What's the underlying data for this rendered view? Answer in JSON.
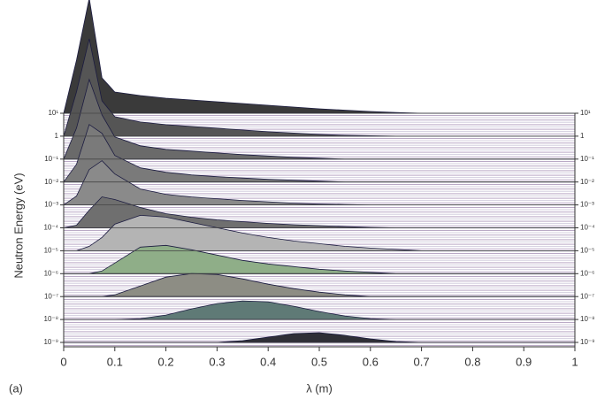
{
  "chart_data": {
    "type": "ridgeline",
    "xlabel": "λ (m)",
    "ylabel": "Neutron Energy (eV)",
    "panel_label": "(a)",
    "x": [
      0,
      0.025,
      0.05,
      0.075,
      0.1,
      0.15,
      0.2,
      0.25,
      0.3,
      0.35,
      0.4,
      0.45,
      0.5,
      0.55,
      0.6,
      0.65,
      0.7,
      0.75,
      0.8,
      0.85,
      0.9,
      0.95,
      1
    ],
    "xlim": [
      0,
      1
    ],
    "xticks": [
      0,
      0.1,
      0.2,
      0.3,
      0.4,
      0.5,
      0.6,
      0.7,
      0.8,
      0.9,
      1
    ],
    "ylog": true,
    "ylim": [
      1e-09,
      10
    ],
    "yticks": [
      {
        "value": 10,
        "label": "10¹"
      },
      1,
      {
        "value": 0.1,
        "label": "10⁻¹"
      },
      {
        "value": 0.01,
        "label": "10⁻²"
      },
      {
        "value": 0.001,
        "label": "10⁻³"
      },
      {
        "value": 0.0001,
        "label": "10⁻⁴"
      },
      {
        "value": 1e-05,
        "label": "10⁻⁵"
      },
      {
        "value": 1e-06,
        "label": "10⁻⁶"
      },
      {
        "value": 1e-07,
        "label": "10⁻⁷"
      },
      {
        "value": 1e-08,
        "label": "10⁻⁸"
      },
      {
        "value": 1e-09,
        "label": "10⁻⁹"
      }
    ],
    "grid": true,
    "series": [
      {
        "energy": 10,
        "color": "#3a3a3a",
        "values": [
          0,
          6,
          13,
          4,
          2.4,
          2,
          1.7,
          1.5,
          1.3,
          1.1,
          0.9,
          0.7,
          0.5,
          0.35,
          0.2,
          0.08,
          0,
          0,
          0,
          0,
          0,
          0,
          0
        ]
      },
      {
        "energy": 1,
        "color": "#555555",
        "values": [
          0,
          5,
          11,
          4,
          2.2,
          1.6,
          1.3,
          1.1,
          0.9,
          0.7,
          0.5,
          0.35,
          0.2,
          0.1,
          0.05,
          0,
          0,
          0,
          0,
          0,
          0,
          0,
          0
        ]
      },
      {
        "energy": 0.1,
        "color": "#6a6a6a",
        "values": [
          0,
          3.5,
          9,
          5,
          2.5,
          1.5,
          1.1,
          0.9,
          0.7,
          0.5,
          0.35,
          0.2,
          0.1,
          0,
          0,
          0,
          0,
          0,
          0,
          0,
          0,
          0,
          0
        ]
      },
      {
        "energy": 0.01,
        "color": "#7a7a7a",
        "values": [
          0,
          2,
          6.5,
          5.5,
          3,
          1.6,
          1.1,
          0.8,
          0.6,
          0.45,
          0.3,
          0.2,
          0.1,
          0,
          0,
          0,
          0,
          0,
          0,
          0,
          0,
          0,
          0
        ]
      },
      {
        "energy": 0.001,
        "color": "#8a8a8a",
        "values": [
          0,
          1,
          4,
          5,
          3.5,
          1.8,
          1.2,
          0.9,
          0.7,
          0.5,
          0.35,
          0.2,
          0.1,
          0.05,
          0,
          0,
          0,
          0,
          0,
          0,
          0,
          0,
          0
        ]
      },
      {
        "energy": 0.0001,
        "color": "#6f6f6f",
        "values": [
          0,
          0.3,
          2,
          3.5,
          3.2,
          2.3,
          1.6,
          1.2,
          0.9,
          0.7,
          0.5,
          0.35,
          0.25,
          0.15,
          0.05,
          0,
          0,
          0,
          0,
          0,
          0,
          0,
          0
        ]
      },
      {
        "energy": 1e-05,
        "color": "#b4b4b4",
        "values": [
          0,
          0,
          0.5,
          1.5,
          3,
          4,
          3.8,
          3.2,
          2.6,
          2,
          1.5,
          1.1,
          0.8,
          0.5,
          0.3,
          0.15,
          0,
          0,
          0,
          0,
          0,
          0,
          0
        ]
      },
      {
        "energy": 1e-06,
        "color": "#8fae88",
        "values": [
          0,
          0,
          0,
          0.3,
          1.2,
          3,
          3.2,
          2.7,
          2.1,
          1.5,
          1.1,
          0.8,
          0.5,
          0.3,
          0.15,
          0,
          0,
          0,
          0,
          0,
          0,
          0,
          0
        ]
      },
      {
        "energy": 1e-07,
        "color": "#8d8d84",
        "values": [
          0,
          0,
          0,
          0,
          0.2,
          1.2,
          2.2,
          2.6,
          2.5,
          2,
          1.4,
          0.9,
          0.5,
          0.2,
          0,
          0,
          0,
          0,
          0,
          0,
          0,
          0,
          0
        ]
      },
      {
        "energy": 1e-08,
        "color": "#5f7a76",
        "values": [
          0,
          0,
          0,
          0,
          0,
          0.1,
          0.5,
          1.2,
          1.8,
          2.1,
          2,
          1.5,
          0.9,
          0.4,
          0.1,
          0,
          0,
          0,
          0,
          0,
          0,
          0,
          0
        ]
      },
      {
        "energy": 1e-09,
        "color": "#2f2f36",
        "values": [
          0,
          0,
          0,
          0,
          0,
          0,
          0,
          0,
          0,
          0.2,
          0.6,
          1,
          1.1,
          0.8,
          0.4,
          0.1,
          0,
          0,
          0,
          0,
          0,
          0,
          0
        ]
      }
    ]
  }
}
